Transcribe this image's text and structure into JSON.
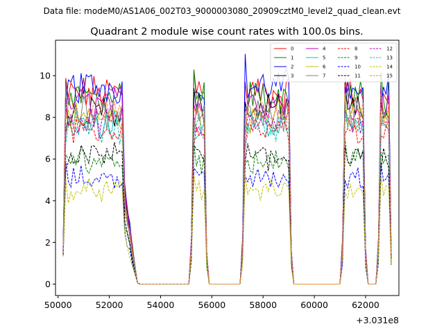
{
  "chart_data": {
    "type": "line",
    "suptitle": "Data file: modeM0/AS1A06_002T03_9000003080_20909cztM0_level2_quad_clean.evt",
    "title": "Quadrant 2 module wise count rates with 100.0s bins.",
    "xlabel": "",
    "ylabel": "",
    "x_offset_label": "+3.031e8",
    "xlim": [
      49900,
      63300
    ],
    "ylim": [
      -0.55,
      11.7
    ],
    "x_ticks": [
      50000,
      52000,
      54000,
      56000,
      58000,
      60000,
      62000
    ],
    "x_tick_labels": [
      "50000",
      "52000",
      "54000",
      "56000",
      "58000",
      "60000",
      "62000"
    ],
    "y_ticks": [
      0,
      2,
      4,
      6,
      8,
      10
    ],
    "y_tick_labels": [
      "0",
      "2",
      "4",
      "6",
      "8",
      "10"
    ],
    "legend_position": "upper right",
    "legend_columns": 4,
    "segments": [
      {
        "start": 50200,
        "end": 53100,
        "rise": 1,
        "fall": 5
      },
      {
        "start": 55200,
        "end": 55800,
        "rise": 1,
        "fall": 1
      },
      {
        "start": 57200,
        "end": 59100,
        "rise": 2,
        "fall": 1
      },
      {
        "start": 61100,
        "end": 62000,
        "rise": 1,
        "fall": 1
      },
      {
        "start": 62500,
        "end": 63000,
        "rise": 1,
        "fall": 1
      }
    ],
    "step": 100,
    "series": [
      {
        "name": "0",
        "color": "#ff0000",
        "dash": "solid",
        "level": 9.4
      },
      {
        "name": "1",
        "color": "#008000",
        "dash": "solid",
        "level": 9.2
      },
      {
        "name": "2",
        "color": "#0000ff",
        "dash": "solid",
        "level": 9.7
      },
      {
        "name": "3",
        "color": "#000000",
        "dash": "solid",
        "level": 8.5
      },
      {
        "name": "4",
        "color": "#bf00bf",
        "dash": "solid",
        "level": 8.9
      },
      {
        "name": "5",
        "color": "#17bebe",
        "dash": "solid",
        "level": 7.8
      },
      {
        "name": "6",
        "color": "#bfbf00",
        "dash": "solid",
        "level": 8.2
      },
      {
        "name": "7",
        "color": "#808080",
        "dash": "solid",
        "level": 8.4
      },
      {
        "name": "8",
        "color": "#ff0000",
        "dash": "dashed",
        "level": 7.5
      },
      {
        "name": "9",
        "color": "#008000",
        "dash": "dashed",
        "level": 6.1
      },
      {
        "name": "10",
        "color": "#0000ff",
        "dash": "dashed",
        "level": 5.2
      },
      {
        "name": "11",
        "color": "#000000",
        "dash": "dashed",
        "level": 6.3
      },
      {
        "name": "12",
        "color": "#bf00bf",
        "dash": "dashed",
        "level": 8.0
      },
      {
        "name": "13",
        "color": "#17bebe",
        "dash": "dashed",
        "level": 7.7
      },
      {
        "name": "14",
        "color": "#bfbf00",
        "dash": "dashed",
        "level": 4.6
      },
      {
        "name": "15",
        "color": "#ff8040",
        "dash": "dashed",
        "level": 8.3
      }
    ]
  }
}
